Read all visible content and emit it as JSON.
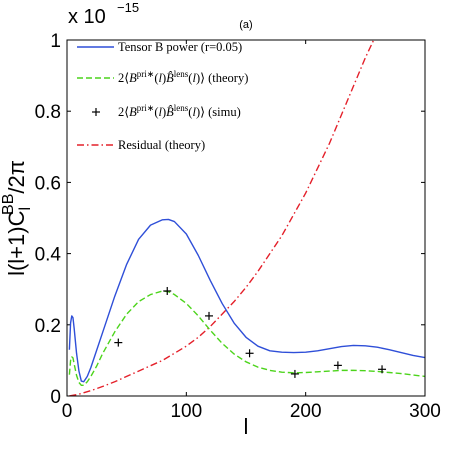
{
  "chart_data": {
    "type": "line",
    "panel_label": "(a)",
    "xlabel": "l",
    "ylabel": "l(l+1)C",
    "ylabel_sub": "l",
    "ylabel_sup": "BB",
    "ylabel_tail": "/2π",
    "y_multiplier_base": "x 10",
    "y_multiplier_exp": "−15",
    "xlim": [
      0,
      300
    ],
    "ylim": [
      0,
      1
    ],
    "x_ticks": [
      "0",
      "100",
      "200",
      "300"
    ],
    "y_ticks": [
      "0",
      "0.2",
      "0.4",
      "0.6",
      "0.8",
      "1"
    ],
    "grid": false,
    "legend_position": "top-left",
    "series": [
      {
        "name": "Tensor B power (r=0.05)",
        "style": "solid",
        "color": "#2f4fd8",
        "x": [
          2,
          3,
          4,
          5,
          6,
          8,
          10,
          12,
          14,
          17,
          20,
          25,
          30,
          40,
          50,
          60,
          70,
          80,
          85,
          90,
          100,
          110,
          120,
          130,
          140,
          150,
          160,
          170,
          180,
          190,
          200,
          210,
          220,
          230,
          240,
          250,
          260,
          270,
          280,
          290,
          300
        ],
        "y": [
          0.13,
          0.205,
          0.225,
          0.22,
          0.19,
          0.12,
          0.07,
          0.042,
          0.04,
          0.055,
          0.08,
          0.13,
          0.18,
          0.28,
          0.37,
          0.44,
          0.48,
          0.495,
          0.496,
          0.49,
          0.455,
          0.395,
          0.325,
          0.26,
          0.205,
          0.165,
          0.14,
          0.127,
          0.123,
          0.122,
          0.123,
          0.127,
          0.133,
          0.139,
          0.142,
          0.141,
          0.137,
          0.13,
          0.122,
          0.114,
          0.108
        ]
      },
      {
        "name": "2⟨B^pri*(l)B̂^lens(l)⟩ (theory)",
        "style": "dashed",
        "color": "#4cd41b",
        "x": [
          2,
          3,
          4,
          5,
          6,
          8,
          10,
          12,
          14,
          17,
          20,
          25,
          30,
          40,
          50,
          60,
          70,
          80,
          85,
          90,
          100,
          110,
          120,
          130,
          140,
          150,
          160,
          170,
          180,
          190,
          200,
          210,
          220,
          230,
          240,
          250,
          260,
          270,
          280,
          290,
          300
        ],
        "y": [
          0.06,
          0.1,
          0.11,
          0.107,
          0.09,
          0.058,
          0.038,
          0.03,
          0.03,
          0.04,
          0.055,
          0.085,
          0.12,
          0.18,
          0.23,
          0.265,
          0.285,
          0.295,
          0.293,
          0.285,
          0.26,
          0.225,
          0.185,
          0.148,
          0.118,
          0.096,
          0.081,
          0.072,
          0.067,
          0.065,
          0.066,
          0.068,
          0.07,
          0.072,
          0.072,
          0.071,
          0.069,
          0.066,
          0.063,
          0.059,
          0.055
        ]
      },
      {
        "name": "2⟨B^pri*(l)B̂^lens(l)⟩ (simu)",
        "style": "markers",
        "marker": "+",
        "color": "#000000",
        "x": [
          43,
          84,
          119,
          153,
          191,
          227,
          264
        ],
        "y": [
          0.15,
          0.295,
          0.225,
          0.12,
          0.062,
          0.086,
          0.075
        ]
      },
      {
        "name": "Residual (theory)",
        "style": "dashdot",
        "color": "#e4202a",
        "x": [
          2,
          10,
          20,
          30,
          40,
          50,
          60,
          70,
          80,
          90,
          100,
          110,
          120,
          130,
          140,
          150,
          160,
          170,
          180,
          190,
          200,
          210,
          220,
          230,
          240,
          250,
          257
        ],
        "y": [
          0.0,
          0.005,
          0.015,
          0.027,
          0.04,
          0.055,
          0.07,
          0.085,
          0.1,
          0.12,
          0.14,
          0.165,
          0.195,
          0.23,
          0.265,
          0.305,
          0.35,
          0.4,
          0.45,
          0.51,
          0.57,
          0.64,
          0.71,
          0.79,
          0.87,
          0.95,
          1.0
        ]
      }
    ],
    "legend": [
      {
        "series": 0,
        "parts": [
          {
            "t": "Tensor B power (r=0.05)"
          }
        ]
      },
      {
        "series": 1,
        "parts": [
          {
            "t": "2⟨"
          },
          {
            "t": "B",
            "i": true
          },
          {
            "t": "pri∗",
            "sup": true
          },
          {
            "t": "("
          },
          {
            "t": "l",
            "i": true
          },
          {
            "t": ")"
          },
          {
            "t": "B̂",
            "i": true
          },
          {
            "t": "lens",
            "sup": true
          },
          {
            "t": "("
          },
          {
            "t": "l",
            "i": true
          },
          {
            "t": ")⟩ (theory)"
          }
        ]
      },
      {
        "series": 2,
        "parts": [
          {
            "t": "2⟨"
          },
          {
            "t": "B",
            "i": true
          },
          {
            "t": "pri∗",
            "sup": true
          },
          {
            "t": "("
          },
          {
            "t": "l",
            "i": true
          },
          {
            "t": ")"
          },
          {
            "t": "B̂",
            "i": true
          },
          {
            "t": "lens",
            "sup": true
          },
          {
            "t": "("
          },
          {
            "t": "l",
            "i": true
          },
          {
            "t": ")⟩ (simu)"
          }
        ]
      },
      {
        "series": 3,
        "parts": [
          {
            "t": "Residual (theory)"
          }
        ]
      }
    ]
  }
}
